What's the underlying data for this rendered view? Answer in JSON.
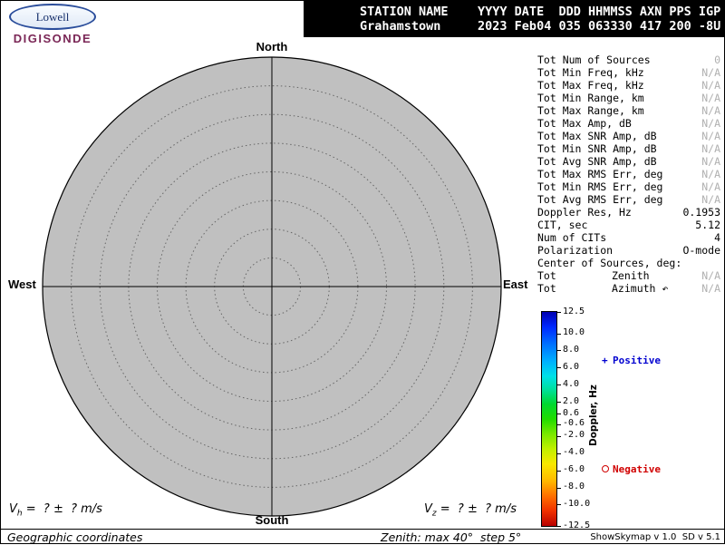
{
  "logo": {
    "lowell": "Lowell",
    "digisonde": "DIGISONDE"
  },
  "header": {
    "line1": "STATION NAME    YYYY DATE  DDD HHMMSS AXN PPS IGP",
    "line2": "Grahamstown     2023 Feb04 035 063330 417 200 -8U"
  },
  "compass": {
    "north": "North",
    "south": "South",
    "west": "West",
    "east": "East"
  },
  "skymap": {
    "max_zenith_deg": 40,
    "step_deg": 5
  },
  "stats": {
    "rows": [
      {
        "label": "Tot Num of Sources",
        "value": "0",
        "na": true
      },
      {
        "label": "Tot Min Freq, kHz",
        "value": "N/A",
        "na": true
      },
      {
        "label": "Tot Max Freq, kHz",
        "value": "N/A",
        "na": true
      },
      {
        "label": "Tot Min Range, km",
        "value": "N/A",
        "na": true
      },
      {
        "label": "Tot Max Range, km",
        "value": "N/A",
        "na": true
      },
      {
        "label": "Tot Max Amp, dB",
        "value": "N/A",
        "na": true
      },
      {
        "label": "Tot Max SNR Amp, dB",
        "value": "N/A",
        "na": true
      },
      {
        "label": "Tot Min SNR Amp, dB",
        "value": "N/A",
        "na": true
      },
      {
        "label": "Tot Avg SNR Amp, dB",
        "value": "N/A",
        "na": true
      },
      {
        "label": "Tot Max RMS Err, deg",
        "value": "N/A",
        "na": true
      },
      {
        "label": "Tot Min RMS Err, deg",
        "value": "N/A",
        "na": true
      },
      {
        "label": "Tot Avg RMS Err, deg",
        "value": "N/A",
        "na": true
      },
      {
        "label": "Doppler Res, Hz",
        "value": "0.1953",
        "na": false
      },
      {
        "label": "CIT, sec",
        "value": "5.12",
        "na": false
      },
      {
        "label": "Num of CITs",
        "value": "4",
        "na": false
      },
      {
        "label": "Polarization",
        "value": "O-mode",
        "na": false
      },
      {
        "label": "Center of Sources, deg:",
        "value": "",
        "na": false
      },
      {
        "label": "Tot",
        "mid": "Zenith",
        "value": "N/A",
        "na": true
      },
      {
        "label": "Tot",
        "mid": "Azimuth ↶",
        "value": "N/A",
        "na": true
      }
    ]
  },
  "colorbar": {
    "title": "Doppler, Hz",
    "max": 12.5,
    "min": -12.5,
    "ticks": [
      "12.5",
      "10.0",
      "8.0",
      "6.0",
      "4.0",
      "2.0",
      "0.6",
      "-0.6",
      "-2.0",
      "-4.0",
      "-6.0",
      "-8.0",
      "-10.0",
      "-12.5"
    ],
    "positive_symbol": "+",
    "positive_label": "Positive",
    "negative_symbol": "circle-outline",
    "negative_label": "Negative",
    "positive_color": "#0000d0",
    "negative_color": "#d00000",
    "na_color": "#b0b0b0"
  },
  "footer": {
    "vh": {
      "symbol": "V",
      "sub": "h",
      "rest": " =  ? ±  ? m/s"
    },
    "vz": {
      "symbol": "V",
      "sub": "z",
      "rest": " =  ? ±  ? m/s"
    },
    "coordinates": "Geographic coordinates",
    "zenith_info": "Zenith: max 40°  step 5°",
    "version": "ShowSkymap v 1.0  SD v 5.1"
  },
  "chart_data": {
    "type": "scatter",
    "points": [],
    "zenith_rings_deg": [
      5,
      10,
      15,
      20,
      25,
      30,
      35,
      40
    ],
    "doppler_scale_hz": {
      "min": -12.5,
      "max": 12.5
    }
  }
}
